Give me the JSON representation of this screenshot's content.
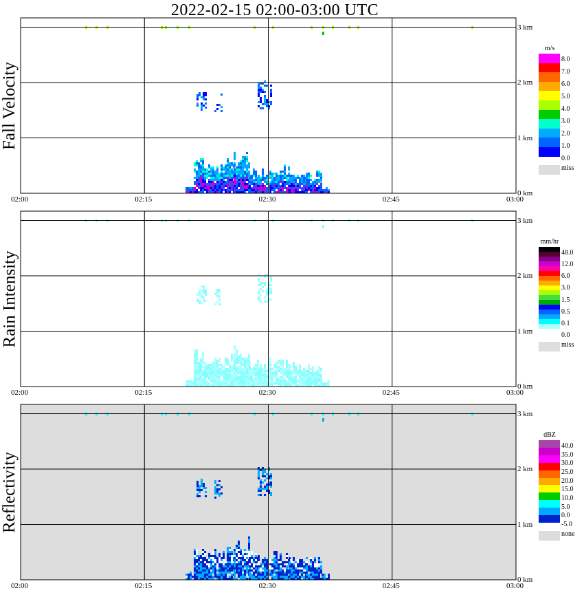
{
  "title": "2022-02-15  02:00-03:00 UTC",
  "colors": {
    "missing": "#dddddd",
    "grid": "#000000"
  },
  "panels": [
    {
      "name": "fall-velocity",
      "label": "Fall Velocity",
      "unit": "m/s",
      "background": "#ffffff",
      "x_ticks": [
        "02:00",
        "02:15",
        "02:30",
        "02:45",
        "03:00"
      ],
      "y_ticks": [
        "0 km",
        "1 km",
        "2 km",
        "3 km"
      ],
      "colorbar": {
        "colors": [
          "#ff00ff",
          "#ff0000",
          "#ff6600",
          "#ffaa00",
          "#ffff00",
          "#aaff00",
          "#00cc00",
          "#00ffcc",
          "#00aaff",
          "#0066ff",
          "#0000ff"
        ],
        "labels": [
          "8.0",
          "7.0",
          "6.0",
          "5.0",
          "4.0",
          "3.0",
          "2.0",
          "1.0",
          "0.0"
        ],
        "missing_label": "miss"
      }
    },
    {
      "name": "rain-intensity",
      "label": "Rain Intensity",
      "unit": "mm/hr",
      "background": "#ffffff",
      "x_ticks": [
        "02:00",
        "02:15",
        "02:30",
        "02:45",
        "03:00"
      ],
      "y_ticks": [
        "0 km",
        "1 km",
        "2 km",
        "3 km"
      ],
      "colorbar": {
        "colors": [
          "#000000",
          "#550033",
          "#880088",
          "#cc00cc",
          "#ff00aa",
          "#ff0000",
          "#ff6600",
          "#ffaa00",
          "#ffff00",
          "#aaff00",
          "#44dd44",
          "#00aa00",
          "#0000ff",
          "#0066ff",
          "#00aaff",
          "#00ffff",
          "#aaffff",
          "#ffffff"
        ],
        "labels": [
          "48.0",
          "12.0",
          "6.0",
          "3.0",
          "1.5",
          "0.5",
          "0.1",
          "0.0"
        ],
        "missing_label": "miss"
      }
    },
    {
      "name": "reflectivity",
      "label": "Reflectivity",
      "unit": "dBZ",
      "background": "#dddddd",
      "x_ticks": [
        "02:00",
        "02:15",
        "02:30",
        "02:45",
        "03:00"
      ],
      "y_ticks": [
        "0 km",
        "1 km",
        "2 km",
        "3 km"
      ],
      "colorbar": {
        "colors": [
          "#aa44aa",
          "#cc00cc",
          "#ff00ff",
          "#ff0000",
          "#ff6600",
          "#ffaa00",
          "#ffff00",
          "#00cc00",
          "#00ffff",
          "#00aaff",
          "#0022cc"
        ],
        "labels": [
          "40.0",
          "35.0",
          "30.0",
          "25.0",
          "20.0",
          "15.0",
          "10.0",
          "5.0",
          "0.0",
          "-5.0"
        ],
        "missing_label": "none"
      }
    }
  ],
  "chart_data": [
    {
      "type": "heatmap",
      "title": "2022-02-15  02:00-03:00 UTC",
      "ylabel": "Fall Velocity",
      "x_range": [
        "02:00",
        "03:00"
      ],
      "y_range_km": [
        0,
        3.5
      ],
      "unit": "m/s",
      "features": [
        {
          "desc": "near-surface rain",
          "t_start": "02:22",
          "t_end": "02:37",
          "height_km": [
            0.0,
            0.8
          ],
          "value_m_s": [
            1.0,
            3.0
          ]
        },
        {
          "desc": "elevated echo",
          "t_start": "02:21",
          "t_end": "02:31",
          "height_km": [
            1.6,
            2.1
          ],
          "value_m_s": [
            0.0,
            1.0
          ]
        },
        {
          "desc": "3 km clutter",
          "height_km": 3.0,
          "value_m_s": [
            3.0,
            5.0
          ]
        }
      ]
    },
    {
      "type": "heatmap",
      "title": "2022-02-15  02:00-03:00 UTC",
      "ylabel": "Rain Intensity",
      "x_range": [
        "02:00",
        "03:00"
      ],
      "y_range_km": [
        0,
        3.5
      ],
      "unit": "mm/hr",
      "features": [
        {
          "desc": "near-surface rain",
          "t_start": "02:21",
          "t_end": "02:37",
          "height_km": [
            0.0,
            0.8
          ],
          "value_mm_hr": [
            0.0,
            0.1
          ]
        }
      ]
    },
    {
      "type": "heatmap",
      "title": "2022-02-15  02:00-03:00 UTC",
      "ylabel": "Reflectivity",
      "x_range": [
        "02:00",
        "03:00"
      ],
      "y_range_km": [
        0,
        3.5
      ],
      "unit": "dBZ",
      "features": [
        {
          "desc": "near-surface rain",
          "t_start": "02:22",
          "t_end": "02:37",
          "height_km": [
            0.0,
            0.8
          ],
          "value_dbz": [
            -5.0,
            10.0
          ]
        },
        {
          "desc": "elevated echo",
          "t_start": "02:21",
          "t_end": "02:31",
          "height_km": [
            1.6,
            2.1
          ],
          "value_dbz": [
            -5.0,
            5.0
          ]
        }
      ]
    }
  ]
}
